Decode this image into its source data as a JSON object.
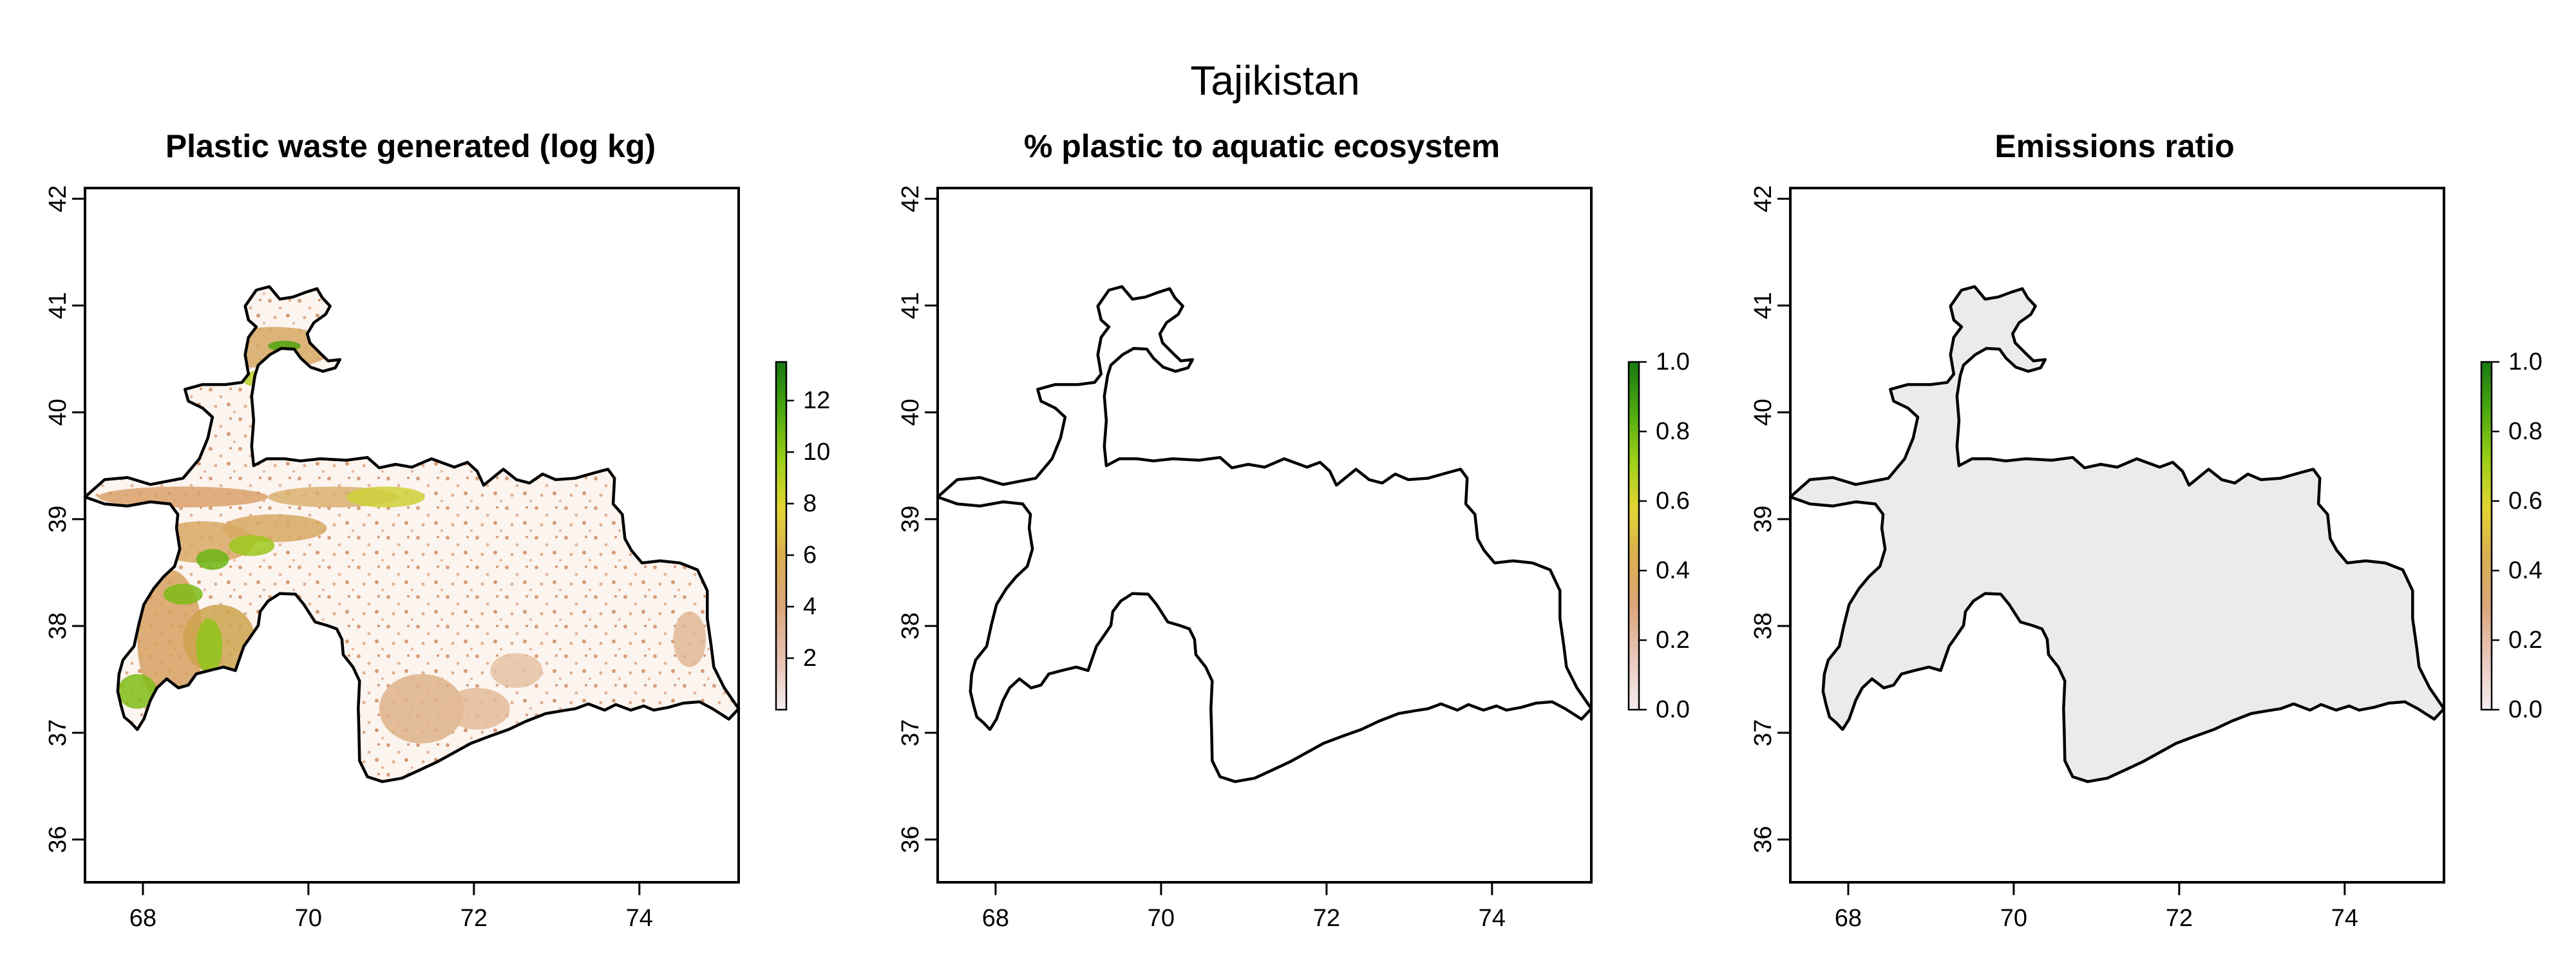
{
  "figure": {
    "title": "Tajikistan"
  },
  "panels": [
    {
      "title": "Plastic waste generated (log kg)",
      "fill": "plastic-waste-raster",
      "legend": {
        "ticks": [
          2,
          4,
          6,
          8,
          10,
          12
        ],
        "range": [
          0,
          13.5
        ]
      }
    },
    {
      "title": "% plastic to aquatic ecosystem",
      "fill": "none",
      "legend": {
        "ticks": [
          "0.0",
          "0.2",
          "0.4",
          "0.6",
          "0.8",
          "1.0"
        ],
        "range": [
          0,
          1
        ]
      }
    },
    {
      "title": "Emissions ratio",
      "fill": "grey-mask",
      "legend": {
        "ticks": [
          "0.0",
          "0.2",
          "0.4",
          "0.6",
          "0.8",
          "1.0"
        ],
        "range": [
          0,
          1
        ]
      }
    }
  ],
  "axes": {
    "x_ticks": [
      "68",
      "70",
      "72",
      "74"
    ],
    "y_ticks": [
      "36",
      "37",
      "38",
      "39",
      "40",
      "41",
      "42"
    ]
  },
  "colors": {
    "scale": [
      "#f4e4e1",
      "#e8c1b3",
      "#d99a74",
      "#dcae52",
      "#e6d23a",
      "#a8d21a",
      "#4ea60f",
      "#1b7a12"
    ],
    "mask_grey": "#ebebeb",
    "outline": "#000000"
  },
  "chart_data": {
    "type": "map",
    "title": "Tajikistan",
    "xlim": [
      67.3,
      75.2
    ],
    "ylim": [
      35.6,
      42.1
    ],
    "panels": [
      {
        "title": "Plastic waste generated (log kg)",
        "legend_range": [
          0,
          13.5
        ]
      },
      {
        "title": "% plastic to aquatic ecosystem",
        "legend_range": [
          0,
          1
        ]
      },
      {
        "title": "Emissions ratio",
        "legend_range": [
          0,
          1
        ]
      }
    ]
  }
}
